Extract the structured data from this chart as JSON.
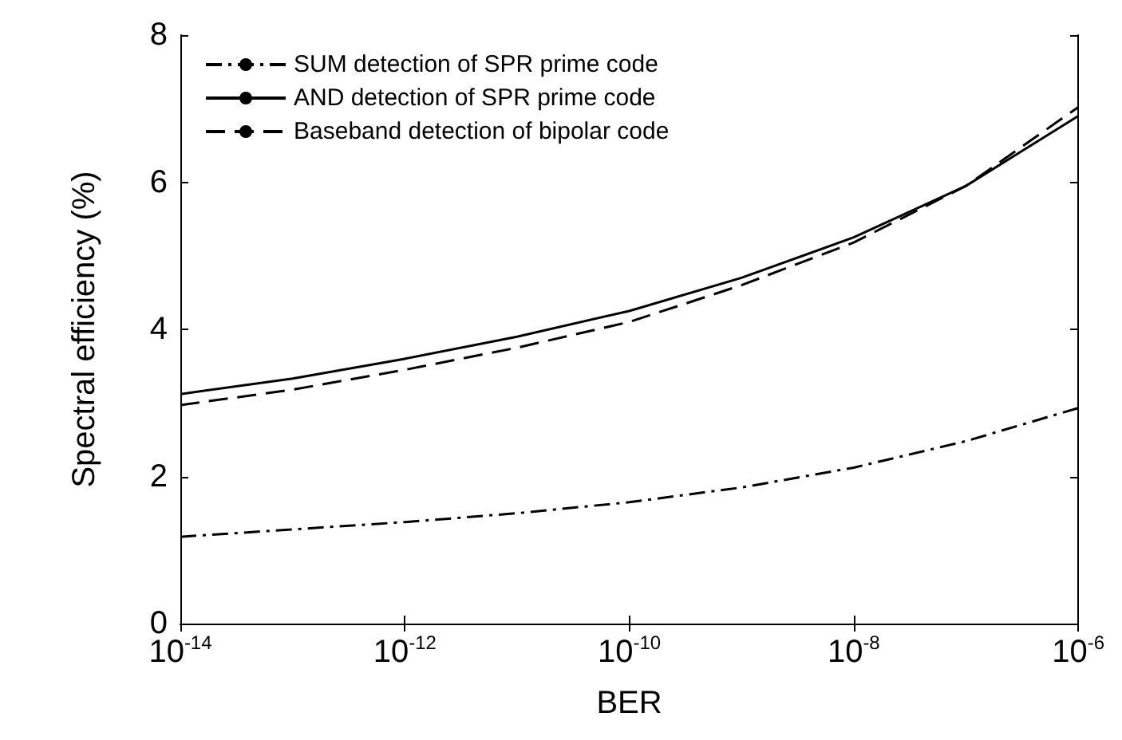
{
  "chart_data": {
    "type": "line",
    "xlabel": "BER",
    "ylabel": "Spectral efficiency (%)",
    "x": [
      1e-14,
      1e-13,
      1e-12,
      1e-11,
      1e-10,
      1e-09,
      1e-08,
      1e-07,
      1e-06
    ],
    "series": [
      {
        "name": "SUM detection of SPR prime code",
        "color": "#000000",
        "line_style": "dashdot",
        "values": [
          1.18,
          1.28,
          1.38,
          1.5,
          1.65,
          1.85,
          2.12,
          2.48,
          2.93
        ]
      },
      {
        "name": "AND detection of SPR prime code",
        "color": "#000000",
        "line_style": "solid",
        "values": [
          3.12,
          3.33,
          3.6,
          3.9,
          4.25,
          4.7,
          5.25,
          5.95,
          6.9
        ]
      },
      {
        "name": "Baseband detection of bipolar code",
        "color": "#000000",
        "line_style": "dashed",
        "values": [
          2.97,
          3.18,
          3.45,
          3.75,
          4.1,
          4.6,
          5.18,
          5.95,
          7.02
        ]
      }
    ],
    "log": "x",
    "xlim": [
      1e-14,
      1e-06
    ],
    "xticks": [
      {
        "value": 1e-14,
        "label": "10$^{-14}$"
      },
      {
        "value": 1e-12,
        "label": "10$^{-12}$"
      },
      {
        "value": 1e-10,
        "label": "10$^{-10}$"
      },
      {
        "value": 1e-08,
        "label": "10$^{-8}$"
      },
      {
        "value": 1e-06,
        "label": "10$^{-6}$"
      }
    ],
    "ylim": [
      0,
      8
    ],
    "yticks": [
      0,
      2,
      4,
      6,
      8
    ],
    "grid": false,
    "legend": "top left",
    "marker": "none"
  }
}
